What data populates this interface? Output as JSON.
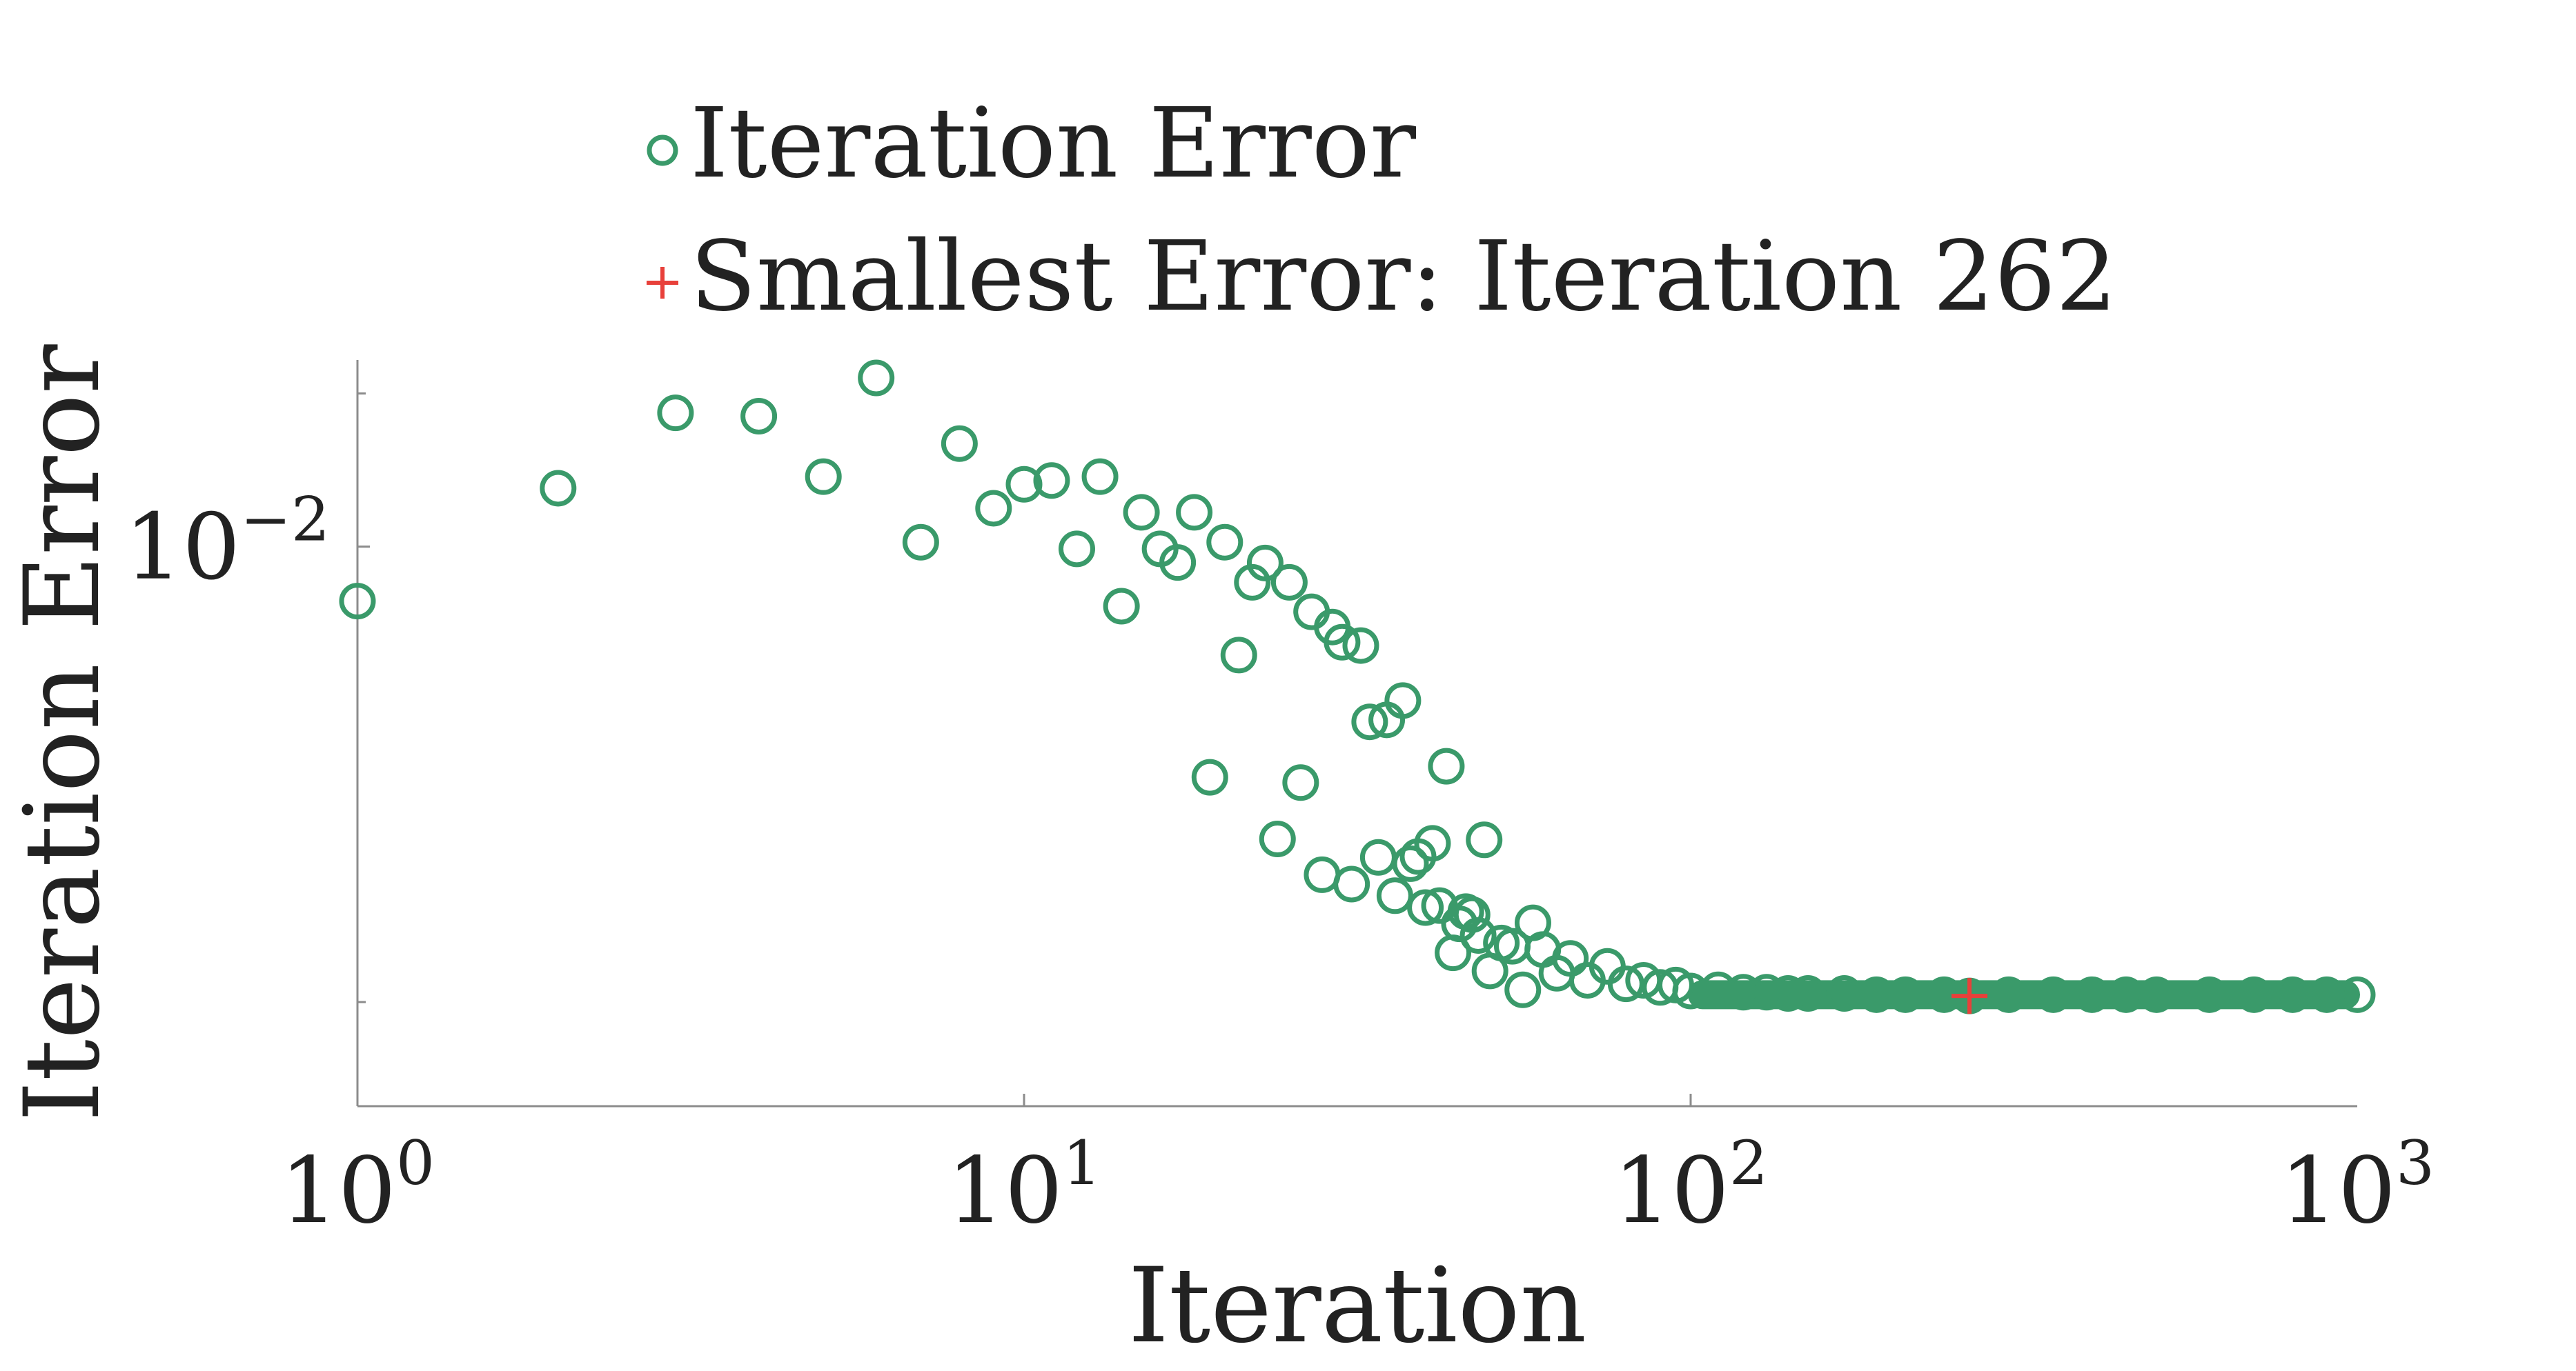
{
  "chart_data": {
    "type": "scatter",
    "title": "",
    "xlabel": "Iteration",
    "ylabel": "Iteration Error",
    "x_scale": "log",
    "y_scale": "log",
    "xlim": [
      1,
      1000
    ],
    "ylim": [
      0.00285,
      0.0152
    ],
    "x_ticks": [
      {
        "value": 1,
        "base": "10",
        "exp": "0"
      },
      {
        "value": 10,
        "base": "10",
        "exp": "1"
      },
      {
        "value": 100,
        "base": "10",
        "exp": "2"
      },
      {
        "value": 1000,
        "base": "10",
        "exp": "3"
      }
    ],
    "y_ticks": [
      {
        "value": 0.01,
        "base": "10",
        "exp": "−2"
      }
    ],
    "y_minor_ticks": [
      0.0036,
      0.0141
    ],
    "grid": false,
    "legend": {
      "placement": "top-left-outside",
      "entries": [
        {
          "label": "Iteration Error",
          "marker": "circle",
          "color": "#3a9a6a"
        },
        {
          "label": "Smallest Error: Iteration 262",
          "marker": "plus",
          "color": "#e8403a"
        }
      ]
    },
    "series": [
      {
        "name": "Iteration Error",
        "marker": "circle",
        "color": "#3a9a6a",
        "points": [
          [
            1,
            0.00885
          ],
          [
            2,
            0.0114
          ],
          [
            3,
            0.0135
          ],
          [
            4,
            0.0134
          ],
          [
            5,
            0.0117
          ],
          [
            6,
            0.0146
          ],
          [
            7,
            0.0101
          ],
          [
            8,
            0.0126
          ],
          [
            9,
            0.0109
          ],
          [
            10,
            0.0115
          ],
          [
            11,
            0.0116
          ],
          [
            12,
            0.00995
          ],
          [
            13,
            0.0117
          ],
          [
            14,
            0.00875
          ],
          [
            15,
            0.0108
          ],
          [
            16,
            0.00995
          ],
          [
            17,
            0.00965
          ],
          [
            18,
            0.0108
          ],
          [
            19,
            0.00596
          ],
          [
            20,
            0.0101
          ],
          [
            21,
            0.00784
          ],
          [
            22,
            0.00923
          ],
          [
            23,
            0.00964
          ],
          [
            24,
            0.00519
          ],
          [
            25,
            0.00923
          ],
          [
            26,
            0.00589
          ],
          [
            27,
            0.00864
          ],
          [
            28,
            0.00479
          ],
          [
            29,
            0.00835
          ],
          [
            30,
            0.00807
          ],
          [
            31,
            0.00469
          ],
          [
            32,
            0.00801
          ],
          [
            33,
            0.00675
          ],
          [
            34,
            0.00498
          ],
          [
            35,
            0.00678
          ],
          [
            36,
            0.00457
          ],
          [
            37,
            0.00708
          ],
          [
            38,
            0.00491
          ],
          [
            39,
            0.00499
          ],
          [
            40,
            0.00445
          ],
          [
            41,
            0.00514
          ],
          [
            42,
            0.00447
          ],
          [
            43,
            0.00611
          ],
          [
            44,
            0.00402
          ],
          [
            45,
            0.00429
          ],
          [
            46,
            0.00441
          ],
          [
            47,
            0.00438
          ],
          [
            48,
            0.00418
          ],
          [
            49,
            0.00518
          ],
          [
            50,
            0.00386
          ],
          [
            52,
            0.00411
          ],
          [
            54,
            0.00408
          ],
          [
            56,
            0.0037
          ],
          [
            58,
            0.0043
          ],
          [
            60,
            0.00405
          ],
          [
            63,
            0.00384
          ],
          [
            66,
            0.00397
          ],
          [
            70,
            0.00378
          ],
          [
            75,
            0.0039
          ],
          [
            80,
            0.00375
          ],
          [
            85,
            0.00378
          ],
          [
            90,
            0.00372
          ],
          [
            95,
            0.00374
          ],
          [
            100,
            0.00369
          ],
          [
            110,
            0.0037
          ],
          [
            120,
            0.00368
          ],
          [
            130,
            0.00368
          ],
          [
            140,
            0.00367
          ],
          [
            150,
            0.00367
          ],
          [
            170,
            0.00367
          ],
          [
            190,
            0.00366
          ],
          [
            210,
            0.00366
          ],
          [
            240,
            0.00366
          ],
          [
            262,
            0.00365
          ],
          [
            300,
            0.00366
          ],
          [
            350,
            0.00366
          ],
          [
            400,
            0.00366
          ],
          [
            450,
            0.00366
          ],
          [
            500,
            0.00366
          ],
          [
            600,
            0.00366
          ],
          [
            700,
            0.00366
          ],
          [
            800,
            0.00366
          ],
          [
            900,
            0.00366
          ],
          [
            1000,
            0.00366
          ]
        ],
        "flat_run": {
          "x_from": 100,
          "x_to": 1000,
          "y": 0.00366
        }
      },
      {
        "name": "Smallest Error: Iteration 262",
        "marker": "plus",
        "color": "#e8403a",
        "points": [
          [
            262,
            0.00365
          ]
        ]
      }
    ]
  }
}
